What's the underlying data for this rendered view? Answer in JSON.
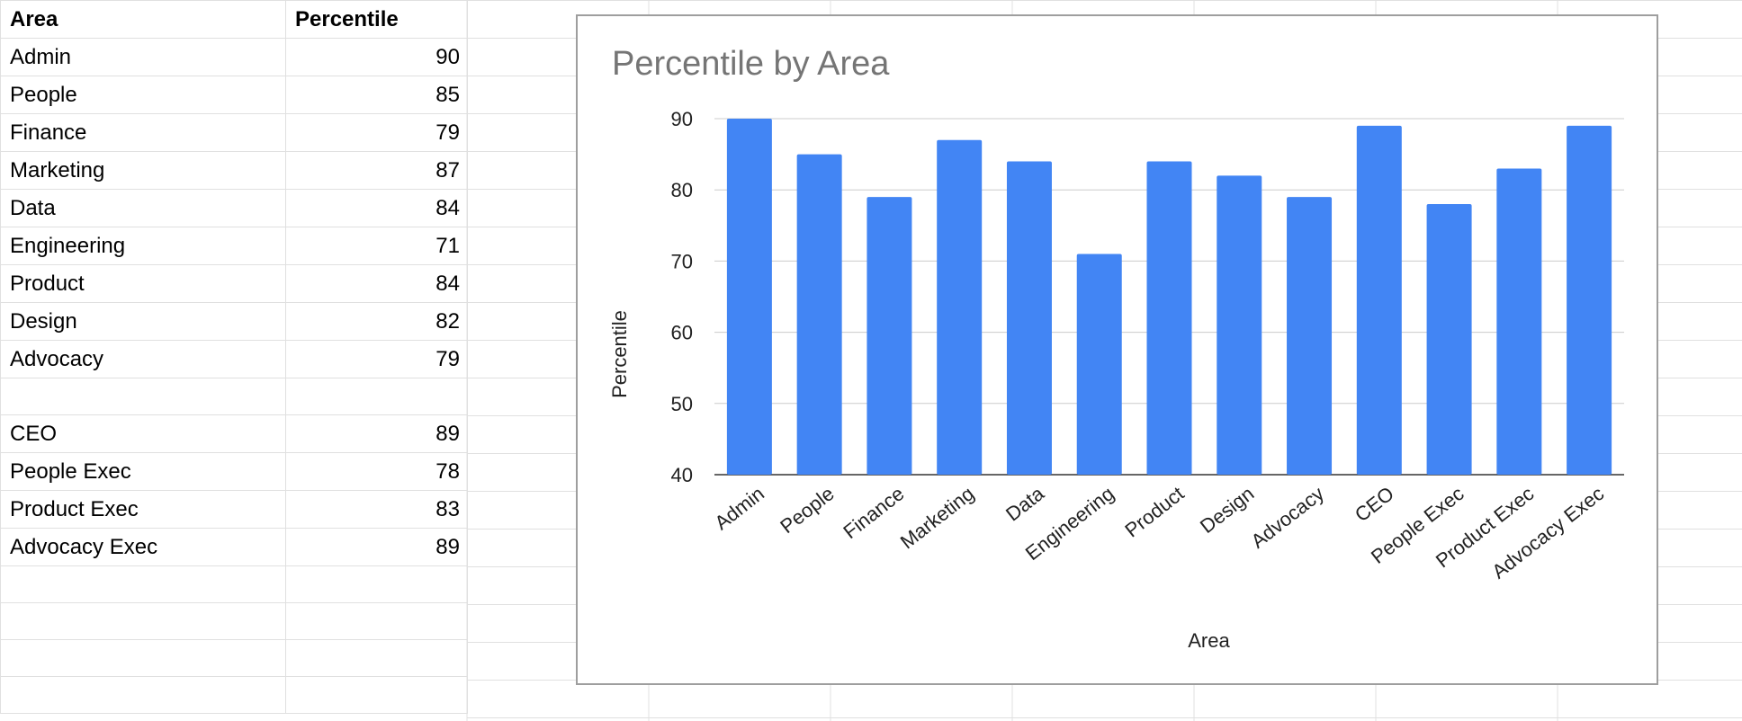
{
  "sheet": {
    "headers": {
      "area": "Area",
      "percentile": "Percentile"
    },
    "rows": [
      {
        "area": "Admin",
        "percentile": "90"
      },
      {
        "area": "People",
        "percentile": "85"
      },
      {
        "area": "Finance",
        "percentile": "79"
      },
      {
        "area": "Marketing",
        "percentile": "87"
      },
      {
        "area": "Data",
        "percentile": "84"
      },
      {
        "area": "Engineering",
        "percentile": "71"
      },
      {
        "area": "Product",
        "percentile": "84"
      },
      {
        "area": "Design",
        "percentile": "82"
      },
      {
        "area": "Advocacy",
        "percentile": "79"
      },
      {
        "area": "",
        "percentile": ""
      },
      {
        "area": "CEO",
        "percentile": "89"
      },
      {
        "area": "People Exec",
        "percentile": "78"
      },
      {
        "area": "Product Exec",
        "percentile": "83"
      },
      {
        "area": "Advocacy Exec",
        "percentile": "89"
      },
      {
        "area": "",
        "percentile": ""
      },
      {
        "area": "",
        "percentile": ""
      },
      {
        "area": "",
        "percentile": ""
      },
      {
        "area": "",
        "percentile": ""
      }
    ]
  },
  "chart_data": {
    "type": "bar",
    "title": "Percentile by Area",
    "xlabel": "Area",
    "ylabel": "Percentile",
    "categories": [
      "Admin",
      "People",
      "Finance",
      "Marketing",
      "Data",
      "Engineering",
      "Product",
      "Design",
      "Advocacy",
      "CEO",
      "People Exec",
      "Product Exec",
      "Advocacy Exec"
    ],
    "values": [
      90,
      85,
      79,
      87,
      84,
      71,
      84,
      82,
      79,
      89,
      78,
      83,
      89
    ],
    "ylim": [
      40,
      90
    ],
    "yticks": [
      "40",
      "50",
      "60",
      "70",
      "80",
      "90"
    ],
    "grid": true,
    "legend": "none",
    "bar_color": "#4285f4",
    "gridline_color": "#cccccc"
  }
}
